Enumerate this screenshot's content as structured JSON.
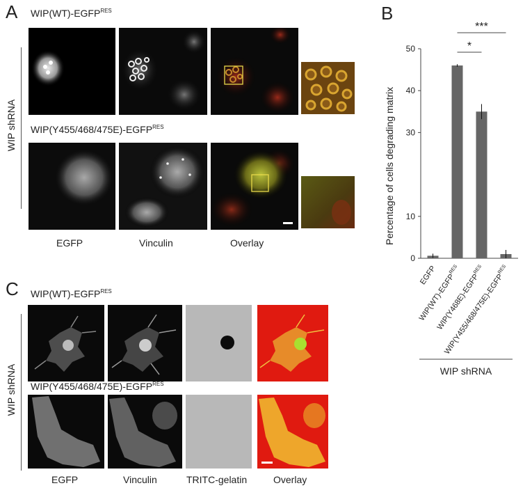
{
  "panel_a": {
    "letter": "A",
    "row1_title": "WIP(WT)-EGFP",
    "row1_sup": "RES",
    "row2_title": "WIP(Y455/468/475E)-EGFP",
    "row2_sup": "RES",
    "side_label": "WIP shRNA",
    "columns": [
      "EGFP",
      "Vinculin",
      "Overlay"
    ]
  },
  "panel_b": {
    "letter": "B",
    "group_label": "WIP shRNA"
  },
  "panel_c": {
    "letter": "C",
    "row1_title": "WIP(WT)-EGFP",
    "row1_sup": "RES",
    "row2_title": "WIP(Y455/468/475E)-EGFP",
    "row2_sup": "RES",
    "side_label": "WIP shRNA",
    "columns": [
      "EGFP",
      "Vinculin",
      "TRITC-gelatin",
      "Overlay"
    ]
  },
  "chart_data": {
    "type": "bar",
    "categories": [
      "EGFP",
      "WIP(WT)-EGFP",
      "WIP(Y468E)-EGFP",
      "WIP(Y455/468/475E)-EGFP"
    ],
    "category_sup": "RES",
    "values": [
      0.6,
      46,
      35,
      1.0
    ],
    "errors": [
      0.5,
      0.3,
      1.8,
      1.0
    ],
    "ylabel": "Percentage of cells degrading matrix",
    "yticks": [
      0,
      10,
      30,
      40,
      50
    ],
    "ylim": [
      0,
      50
    ],
    "bar_color": "#666666",
    "significance": [
      {
        "from": 1,
        "to": 2,
        "label": "*"
      },
      {
        "from": 1,
        "to": 3,
        "label": "***"
      }
    ]
  }
}
